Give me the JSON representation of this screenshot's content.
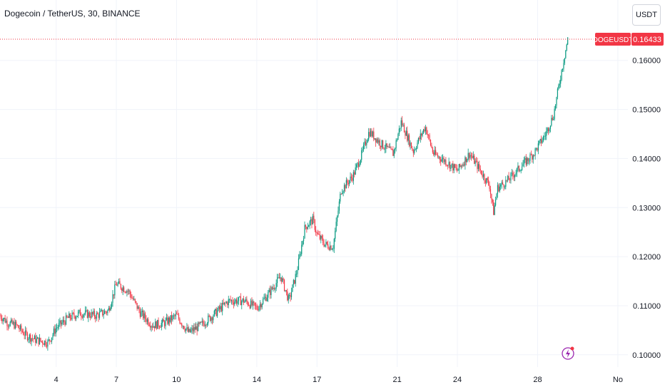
{
  "header": {
    "title": "Dogecoin / TetherUS, 30, BINANCE",
    "unit_button": "USDT"
  },
  "price_tag": {
    "symbol": "DOGEUSDT",
    "value": "0.16433"
  },
  "colors": {
    "up": "#089981",
    "down": "#f23645",
    "grid": "#f0f3fa",
    "axis_text": "#131722",
    "tag_bg": "#f23645",
    "accent_icon": "#9c27b0"
  },
  "icons": [
    "lightning-icon"
  ],
  "chart_data": {
    "type": "candlestick",
    "title": "Dogecoin / TetherUS, 30, BINANCE",
    "y_tick_labels": [
      "0.10000",
      "0.11000",
      "0.12000",
      "0.13000",
      "0.14000",
      "0.15000",
      "0.16000"
    ],
    "y_ticks": [
      0.1,
      0.11,
      0.12,
      0.13,
      0.14,
      0.15,
      0.16
    ],
    "ylim": [
      0.0975,
      0.1665
    ],
    "x_tick_labels": [
      "4",
      "7",
      "10",
      "14",
      "17",
      "21",
      "24",
      "28",
      "No"
    ],
    "x_ticks": [
      4,
      7,
      10,
      14,
      17,
      21,
      24,
      28,
      32
    ],
    "xlim": [
      1.2,
      32.5
    ],
    "last_price": 0.16433,
    "grid": true,
    "series": [
      {
        "values": [
          [
            1.2,
            0.108
          ],
          [
            1.6,
            0.1065
          ],
          [
            2.0,
            0.106
          ],
          [
            2.5,
            0.104
          ],
          [
            3.0,
            0.103
          ],
          [
            3.6,
            0.1025
          ],
          [
            4.0,
            0.1055
          ],
          [
            4.6,
            0.1075
          ],
          [
            5.2,
            0.1085
          ],
          [
            6.0,
            0.108
          ],
          [
            6.6,
            0.109
          ],
          [
            7.0,
            0.1145
          ],
          [
            7.6,
            0.113
          ],
          [
            8.2,
            0.1085
          ],
          [
            8.8,
            0.106
          ],
          [
            9.4,
            0.1065
          ],
          [
            10.0,
            0.108
          ],
          [
            10.6,
            0.1045
          ],
          [
            11.2,
            0.106
          ],
          [
            11.8,
            0.108
          ],
          [
            12.6,
            0.111
          ],
          [
            13.4,
            0.111
          ],
          [
            14.0,
            0.1095
          ],
          [
            14.6,
            0.1125
          ],
          [
            15.2,
            0.116
          ],
          [
            15.6,
            0.111
          ],
          [
            16.0,
            0.117
          ],
          [
            16.4,
            0.126
          ],
          [
            16.8,
            0.1275
          ],
          [
            17.0,
            0.1245
          ],
          [
            17.4,
            0.1225
          ],
          [
            17.8,
            0.122
          ],
          [
            18.2,
            0.1335
          ],
          [
            18.8,
            0.1365
          ],
          [
            19.2,
            0.1405
          ],
          [
            19.6,
            0.1455
          ],
          [
            20.2,
            0.143
          ],
          [
            20.8,
            0.141
          ],
          [
            21.2,
            0.1475
          ],
          [
            21.8,
            0.1415
          ],
          [
            22.4,
            0.1465
          ],
          [
            22.8,
            0.141
          ],
          [
            23.4,
            0.1395
          ],
          [
            24.0,
            0.1375
          ],
          [
            24.6,
            0.141
          ],
          [
            25.0,
            0.1385
          ],
          [
            25.6,
            0.1345
          ],
          [
            25.8,
            0.129
          ],
          [
            26.0,
            0.134
          ],
          [
            26.5,
            0.1355
          ],
          [
            27.2,
            0.1385
          ],
          [
            27.8,
            0.141
          ],
          [
            28.4,
            0.145
          ],
          [
            28.8,
            0.149
          ],
          [
            29.2,
            0.158
          ],
          [
            29.5,
            0.1643
          ]
        ]
      }
    ]
  }
}
